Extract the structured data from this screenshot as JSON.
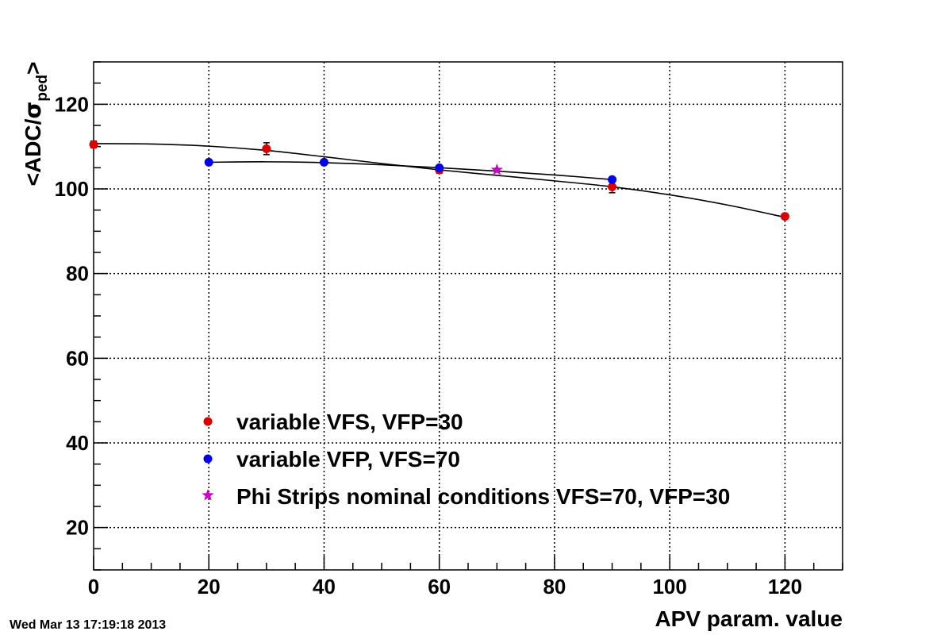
{
  "timestamp": "Wed Mar 13 17:19:18 2013",
  "chart_data": {
    "type": "scatter",
    "title": "",
    "xlabel": "APV param. value",
    "ylabel_main": "<ADC/",
    "ylabel_sigma": "σ",
    "ylabel_sub": "ped",
    "ylabel_close": ">",
    "xlim": [
      0,
      130
    ],
    "ylim": [
      10,
      130
    ],
    "xticks": [
      0,
      20,
      40,
      60,
      80,
      100,
      120
    ],
    "xtick_labels": [
      "0",
      "20",
      "40",
      "60",
      "80",
      "100",
      "120"
    ],
    "yticks": [
      20,
      40,
      60,
      80,
      100,
      120
    ],
    "ytick_labels": [
      "20",
      "40",
      "60",
      "80",
      "100",
      "120"
    ],
    "grid": true,
    "legend_position": "bottom-left",
    "series": [
      {
        "name": "variable VFS, VFP=30",
        "color": "#dd0000",
        "marker": "circle",
        "x": [
          0,
          30,
          60,
          90,
          120
        ],
        "y": [
          110.5,
          109.5,
          104.5,
          100.5,
          93.5
        ],
        "yerr": [
          0.8,
          1.4,
          0.8,
          1.4,
          0.6
        ],
        "fit_curve": [
          [
            0,
            110.7
          ],
          [
            10,
            110.6
          ],
          [
            20,
            110.1
          ],
          [
            30,
            109.1
          ],
          [
            40,
            107.6
          ],
          [
            50,
            106.0
          ],
          [
            60,
            104.5
          ],
          [
            70,
            103.2
          ],
          [
            80,
            101.9
          ],
          [
            90,
            100.5
          ],
          [
            100,
            98.6
          ],
          [
            110,
            96.2
          ],
          [
            120,
            93.3
          ]
        ]
      },
      {
        "name": "variable VFP, VFS=70",
        "color": "#0000ee",
        "marker": "circle",
        "x": [
          20,
          40,
          60,
          90
        ],
        "y": [
          106.3,
          106.3,
          105.0,
          102.2
        ],
        "yerr": [
          0.5,
          0.5,
          0.5,
          0.5
        ],
        "fit_curve": [
          [
            20,
            106.3
          ],
          [
            30,
            106.4
          ],
          [
            40,
            106.2
          ],
          [
            50,
            105.7
          ],
          [
            60,
            105.0
          ],
          [
            70,
            104.2
          ],
          [
            80,
            103.3
          ],
          [
            90,
            102.2
          ]
        ]
      },
      {
        "name": "Phi Strips nominal conditions VFS=70, VFP=30",
        "color": "#cc00cc",
        "marker": "star",
        "x": [
          70
        ],
        "y": [
          104.5
        ],
        "yerr": [
          0
        ]
      }
    ]
  }
}
